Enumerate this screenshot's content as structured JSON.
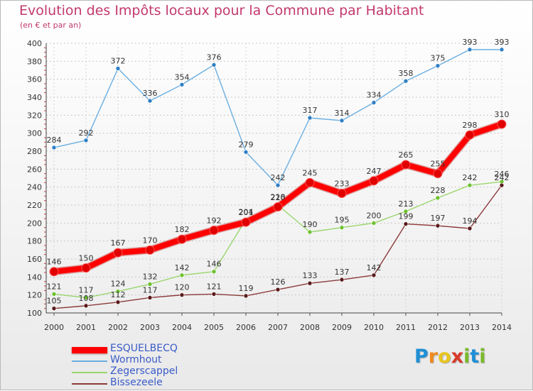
{
  "title": "Evolution des Impôts locaux pour la Commune par Habitant",
  "subtitle": "(en € et par an)",
  "logo": {
    "letters": [
      "P",
      "r",
      "o",
      "x",
      "i",
      "t",
      "i"
    ],
    "colors": [
      "#1f8fd6",
      "#f08a1e",
      "#e8c51d",
      "#d83a2a",
      "#79b92a",
      "#1f8fd6",
      "#79b92a"
    ]
  },
  "chart_data": {
    "type": "line",
    "x": [
      2000,
      2001,
      2002,
      2003,
      2004,
      2005,
      2006,
      2007,
      2008,
      2009,
      2010,
      2011,
      2012,
      2013,
      2014
    ],
    "ylim": [
      100,
      400
    ],
    "yticks": [
      100,
      120,
      140,
      160,
      180,
      200,
      220,
      240,
      260,
      280,
      300,
      320,
      340,
      360,
      380,
      400
    ],
    "grid": true,
    "series": [
      {
        "name": "ESQUELBECQ",
        "color": "#ff0000",
        "marker": "#e00000",
        "values": [
          146,
          150,
          167,
          170,
          182,
          192,
          201,
          218,
          245,
          233,
          247,
          265,
          255,
          298,
          310
        ]
      },
      {
        "name": "Wormhout",
        "color": "#6aaee0",
        "marker": "#2e7fc6",
        "values": [
          284,
          292,
          372,
          336,
          354,
          376,
          279,
          242,
          317,
          314,
          334,
          358,
          375,
          393,
          393
        ]
      },
      {
        "name": "Zegerscappel",
        "color": "#9ad66c",
        "marker": "#6cc12e",
        "values": [
          121,
          117,
          124,
          132,
          142,
          146,
          204,
          220,
          190,
          195,
          200,
          213,
          228,
          242,
          246
        ]
      },
      {
        "name": "Bissezeele",
        "color": "#8b3a3a",
        "marker": "#5a1a1a",
        "values": [
          105,
          108,
          112,
          117,
          120,
          121,
          119,
          126,
          133,
          137,
          142,
          199,
          197,
          194,
          242
        ]
      }
    ]
  }
}
